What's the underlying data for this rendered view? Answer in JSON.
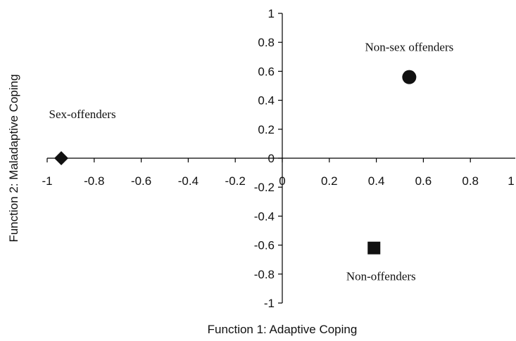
{
  "chart_data": {
    "type": "scatter",
    "xlabel": "Function 1: Adaptive Coping",
    "ylabel": "Function 2: Maladaptive Coping",
    "xlim": [
      -1,
      1
    ],
    "ylim": [
      -1,
      1
    ],
    "x_ticks": [
      "-1",
      "-0.8",
      "-0.6",
      "-0.4",
      "-0.2",
      "0",
      "0.2",
      "0.4",
      "0.6",
      "0.8",
      "1"
    ],
    "y_ticks": [
      "1",
      "0.8",
      "0.6",
      "0.4",
      "0.2",
      "0",
      "-0.2",
      "-0.4",
      "-0.6",
      "-0.8",
      "-1"
    ],
    "grid": false,
    "legend": "none",
    "points": [
      {
        "label": "Non-sex offenders",
        "x": 0.54,
        "y": 0.56,
        "marker": "circle",
        "color": "#111111"
      },
      {
        "label": "Sex-offenders",
        "x": -0.94,
        "y": 0.0,
        "marker": "diamond",
        "color": "#111111"
      },
      {
        "label": "Non-offenders",
        "x": 0.39,
        "y": -0.62,
        "marker": "square",
        "color": "#111111"
      }
    ]
  }
}
